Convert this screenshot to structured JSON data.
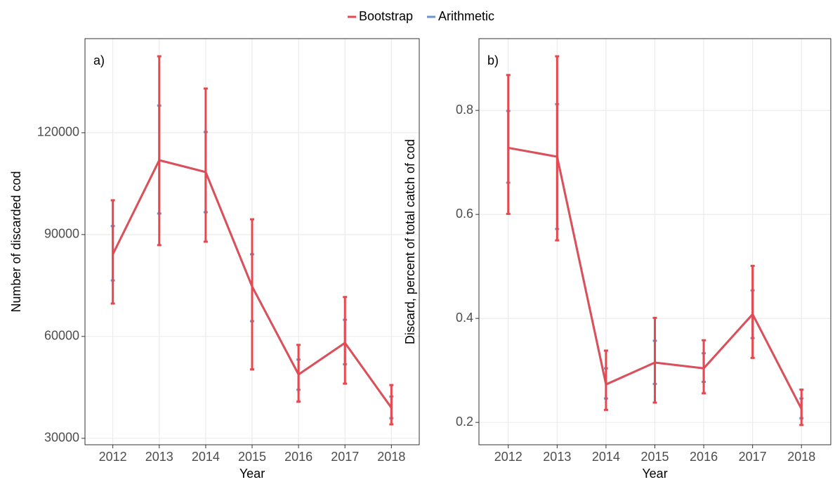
{
  "chart_data": [
    {
      "type": "line",
      "annotation": "a)",
      "x_label": "Year",
      "y_label": "Number of discarded cod",
      "categories": [
        "2012",
        "2013",
        "2014",
        "2015",
        "2016",
        "2017",
        "2018"
      ],
      "ylim": [
        28100,
        147700
      ],
      "yticks": [
        30000,
        60000,
        90000,
        120000
      ],
      "grid": true,
      "series": [
        {
          "name": "Bootstrap",
          "color": "#e8474d",
          "values": [
            84200,
            111900,
            108400,
            74700,
            48800,
            58100,
            39000
          ],
          "lower": [
            69700,
            86900,
            87900,
            50300,
            40800,
            46100,
            34100
          ],
          "upper": [
            100100,
            142500,
            133000,
            94500,
            57500,
            71600,
            45700
          ]
        },
        {
          "name": "Arithmetic",
          "color": "#6a95c8",
          "values": [
            84200,
            111900,
            108400,
            74700,
            48800,
            58100,
            39000
          ],
          "lower": [
            76500,
            96200,
            96600,
            64500,
            44300,
            51800,
            35900
          ],
          "upper": [
            92500,
            128000,
            120200,
            84200,
            53200,
            64900,
            42300
          ]
        }
      ]
    },
    {
      "type": "line",
      "annotation": "b)",
      "x_label": "Year",
      "y_label": "Discard, percent of total catch of cod",
      "categories": [
        "2012",
        "2013",
        "2014",
        "2015",
        "2016",
        "2017",
        "2018"
      ],
      "ylim": [
        0.157,
        0.938
      ],
      "yticks": [
        0.2,
        0.4,
        0.6,
        0.8
      ],
      "grid": true,
      "series": [
        {
          "name": "Bootstrap",
          "color": "#e8474d",
          "values": [
            0.728,
            0.711,
            0.273,
            0.315,
            0.304,
            0.408,
            0.226
          ],
          "lower": [
            0.601,
            0.55,
            0.224,
            0.238,
            0.256,
            0.324,
            0.195
          ],
          "upper": [
            0.868,
            0.904,
            0.338,
            0.401,
            0.358,
            0.501,
            0.263
          ]
        },
        {
          "name": "Arithmetic",
          "color": "#6a95c8",
          "values": [
            0.728,
            0.711,
            0.273,
            0.315,
            0.304,
            0.408,
            0.226
          ],
          "lower": [
            0.661,
            0.572,
            0.246,
            0.274,
            0.278,
            0.362,
            0.208
          ],
          "upper": [
            0.799,
            0.812,
            0.304,
            0.357,
            0.333,
            0.454,
            0.246
          ]
        }
      ]
    }
  ]
}
